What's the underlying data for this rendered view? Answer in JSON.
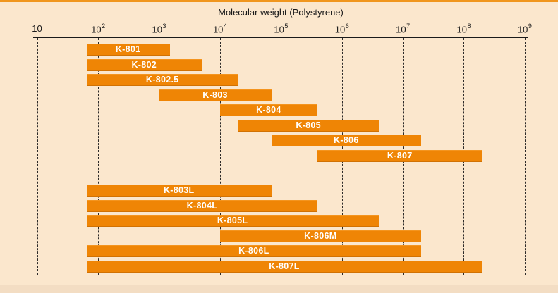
{
  "figure": {
    "background": "#FBE7CD",
    "top_border_color": "#F0961E",
    "bottom_strip_color": "#F3DDC3",
    "axis_color": "#1A1A1A",
    "grid_color": "#1A1A1A",
    "bar_color": "#EF8505",
    "bar_label_color": "#FFFFFF"
  },
  "chart_data": {
    "type": "bar",
    "subtype": "horizontal-range-bars",
    "x_scale": "log10",
    "title": "Molecular weight (Polystyrene)",
    "grid": "vertical-dashed",
    "legend": "none",
    "x_axis": {
      "min": 10,
      "max": 1000000000,
      "ticks": [
        {
          "value": 10,
          "base": "10",
          "exp": ""
        },
        {
          "value": 100,
          "base": "10",
          "exp": "2"
        },
        {
          "value": 1000,
          "base": "10",
          "exp": "3"
        },
        {
          "value": 10000,
          "base": "10",
          "exp": "4"
        },
        {
          "value": 100000,
          "base": "10",
          "exp": "5"
        },
        {
          "value": 1000000,
          "base": "10",
          "exp": "6"
        },
        {
          "value": 10000000,
          "base": "10",
          "exp": "7"
        },
        {
          "value": 100000000,
          "base": "10",
          "exp": "8"
        },
        {
          "value": 1000000000,
          "base": "10",
          "exp": "9"
        }
      ]
    },
    "series": [
      {
        "name": "K-801",
        "mw_range": [
          65,
          1500
        ],
        "group": 1
      },
      {
        "name": "K-802",
        "mw_range": [
          65,
          5000
        ],
        "group": 1
      },
      {
        "name": "K-802.5",
        "mw_range": [
          65,
          20000
        ],
        "group": 1
      },
      {
        "name": "K-803",
        "mw_range": [
          1000,
          70000
        ],
        "group": 1
      },
      {
        "name": "K-804",
        "mw_range": [
          10000,
          400000
        ],
        "group": 1
      },
      {
        "name": "K-805",
        "mw_range": [
          20000,
          4000000
        ],
        "group": 1
      },
      {
        "name": "K-806",
        "mw_range": [
          70000,
          20000000
        ],
        "group": 1
      },
      {
        "name": "K-807",
        "mw_range": [
          400000,
          200000000
        ],
        "group": 1
      },
      {
        "name": "K-803L",
        "mw_range": [
          65,
          70000
        ],
        "group": 2
      },
      {
        "name": "K-804L",
        "mw_range": [
          65,
          400000
        ],
        "group": 2
      },
      {
        "name": "K-805L",
        "mw_range": [
          65,
          4000000
        ],
        "group": 2
      },
      {
        "name": "K-806M",
        "mw_range": [
          10000,
          20000000
        ],
        "group": 2
      },
      {
        "name": "K-806L",
        "mw_range": [
          65,
          20000000
        ],
        "group": 2
      },
      {
        "name": "K-807L",
        "mw_range": [
          65,
          200000000
        ],
        "group": 2
      }
    ]
  }
}
